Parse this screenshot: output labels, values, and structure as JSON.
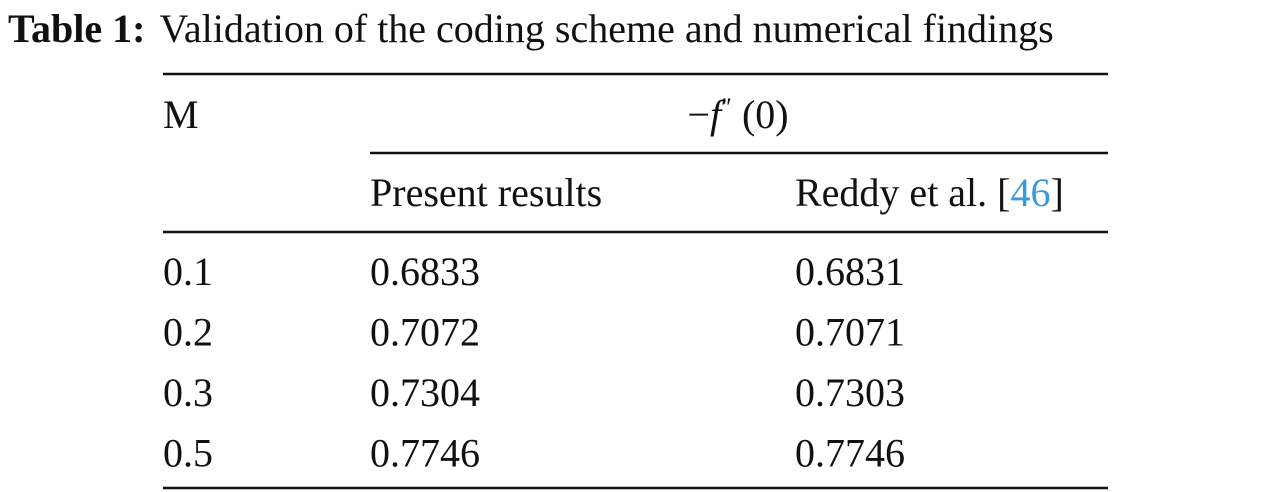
{
  "caption": {
    "label": "Table 1:",
    "text": "Validation of the coding scheme and numerical findings"
  },
  "table": {
    "first_column_header": "M",
    "group_header": {
      "minus": "−",
      "symbol": "f",
      "prime": "″",
      "argument": "(0)"
    },
    "sub_headers": {
      "present": "Present results",
      "reference": {
        "prefix": "Reddy et al. [",
        "citation": "46",
        "suffix": "]"
      }
    },
    "rows": [
      [
        "0.1",
        "0.6833",
        "0.6831"
      ],
      [
        "0.2",
        "0.7072",
        "0.7071"
      ],
      [
        "0.3",
        "0.7304",
        "0.7303"
      ],
      [
        "0.5",
        "0.7746",
        "0.7746"
      ]
    ]
  }
}
